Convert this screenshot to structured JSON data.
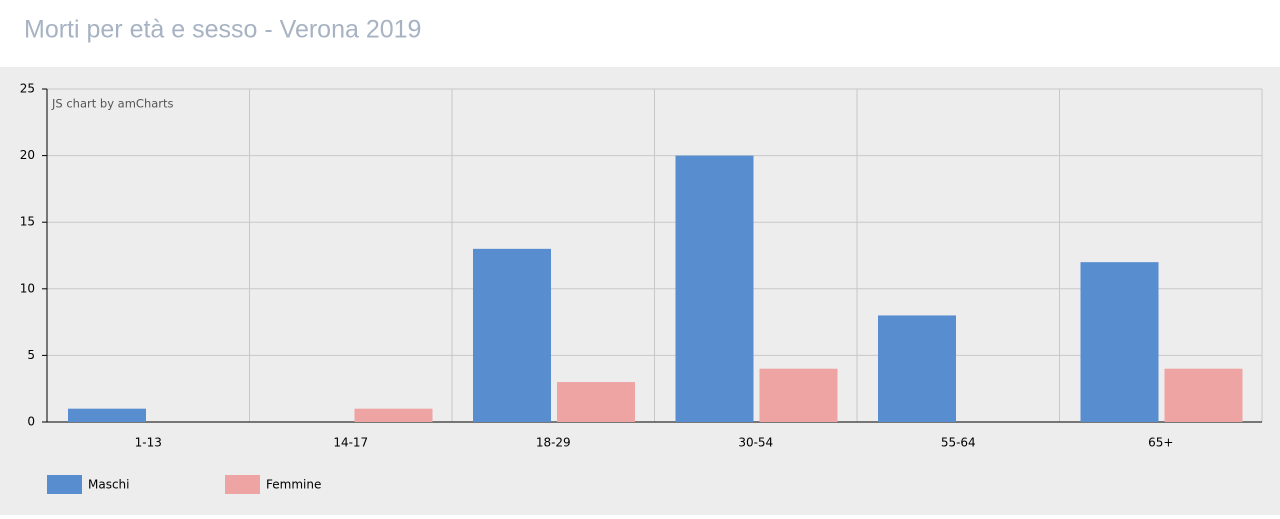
{
  "chart_data": {
    "type": "bar",
    "title": "Morti per età e sesso - Verona 2019",
    "credit": "JS chart by amCharts",
    "categories": [
      "1-13",
      "14-17",
      "18-29",
      "30-54",
      "55-64",
      "65+"
    ],
    "series": [
      {
        "name": "Maschi",
        "color": "#588dd0",
        "values": [
          1,
          0,
          13,
          20,
          8,
          12
        ]
      },
      {
        "name": "Femmine",
        "color": "#eea4a3",
        "values": [
          0,
          1,
          3,
          4,
          0,
          4
        ]
      }
    ],
    "ylim": [
      0,
      25
    ],
    "yticks": [
      0,
      5,
      10,
      15,
      20,
      25
    ],
    "grid": true,
    "legend": "bottom-left"
  }
}
